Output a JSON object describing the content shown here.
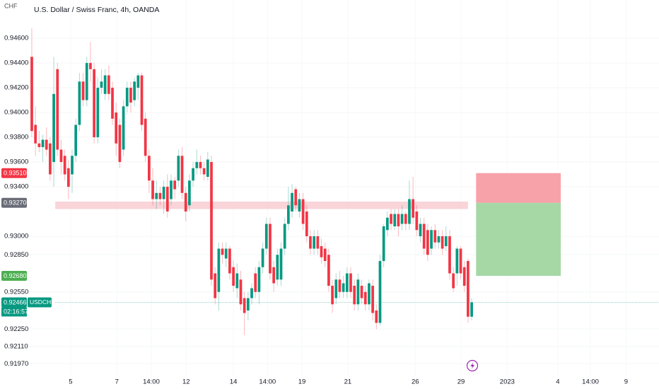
{
  "chart_data": {
    "type": "candlestick",
    "title": "U.S. Dollar / Swiss Franc, 4h, OANDA",
    "y_label": "CHF",
    "up_color": "#089981",
    "down_color": "#f23645",
    "ohlc": [
      [
        0.9445,
        0.9468,
        0.938,
        0.9385
      ],
      [
        0.939,
        0.9405,
        0.9365,
        0.9375
      ],
      [
        0.9375,
        0.9385,
        0.9368,
        0.9372
      ],
      [
        0.9372,
        0.9382,
        0.936,
        0.9378
      ],
      [
        0.9378,
        0.9388,
        0.9365,
        0.937
      ],
      [
        0.9375,
        0.938,
        0.9345,
        0.935
      ],
      [
        0.936,
        0.9445,
        0.934,
        0.9415
      ],
      [
        0.9435,
        0.944,
        0.9365,
        0.937
      ],
      [
        0.937,
        0.9378,
        0.935,
        0.936
      ],
      [
        0.9365,
        0.937,
        0.9345,
        0.935
      ],
      [
        0.9355,
        0.9362,
        0.933,
        0.934
      ],
      [
        0.935,
        0.937,
        0.9335,
        0.9365
      ],
      [
        0.9365,
        0.9395,
        0.936,
        0.939
      ],
      [
        0.939,
        0.9432,
        0.9385,
        0.9425
      ],
      [
        0.9425,
        0.9432,
        0.9405,
        0.941
      ],
      [
        0.941,
        0.9445,
        0.9405,
        0.944
      ],
      [
        0.944,
        0.9457,
        0.9425,
        0.9435
      ],
      [
        0.9435,
        0.944,
        0.9375,
        0.938
      ],
      [
        0.938,
        0.9428,
        0.9375,
        0.942
      ],
      [
        0.942,
        0.9435,
        0.9415,
        0.9425
      ],
      [
        0.9415,
        0.9435,
        0.941,
        0.943
      ],
      [
        0.943,
        0.9438,
        0.941,
        0.9415
      ],
      [
        0.942,
        0.9425,
        0.939,
        0.9395
      ],
      [
        0.94,
        0.9408,
        0.9365,
        0.9375
      ],
      [
        0.939,
        0.9395,
        0.9355,
        0.936
      ],
      [
        0.937,
        0.941,
        0.9365,
        0.9405
      ],
      [
        0.9405,
        0.9425,
        0.94,
        0.942
      ],
      [
        0.942,
        0.9425,
        0.94,
        0.9408
      ],
      [
        0.941,
        0.9428,
        0.9405,
        0.9425
      ],
      [
        0.942,
        0.9432,
        0.941,
        0.943
      ],
      [
        0.943,
        0.9432,
        0.9385,
        0.939
      ],
      [
        0.9395,
        0.94,
        0.936,
        0.9365
      ],
      [
        0.9365,
        0.937,
        0.9335,
        0.9345
      ],
      [
        0.9345,
        0.9355,
        0.9325,
        0.933
      ],
      [
        0.933,
        0.9345,
        0.9322,
        0.9335
      ],
      [
        0.9335,
        0.934,
        0.9325,
        0.933
      ],
      [
        0.933,
        0.9345,
        0.9318,
        0.934
      ],
      [
        0.934,
        0.935,
        0.9315,
        0.932
      ],
      [
        0.933,
        0.935,
        0.9325,
        0.9345
      ],
      [
        0.9345,
        0.9348,
        0.933,
        0.9338
      ],
      [
        0.9345,
        0.937,
        0.934,
        0.9365
      ],
      [
        0.9365,
        0.9372,
        0.933,
        0.9335
      ],
      [
        0.9335,
        0.934,
        0.9312,
        0.932
      ],
      [
        0.9325,
        0.935,
        0.932,
        0.9345
      ],
      [
        0.9345,
        0.936,
        0.934,
        0.9355
      ],
      [
        0.9355,
        0.937,
        0.935,
        0.936
      ],
      [
        0.936,
        0.9365,
        0.935,
        0.9355
      ],
      [
        0.9355,
        0.936,
        0.9345,
        0.935
      ],
      [
        0.9348,
        0.9368,
        0.9345,
        0.9362
      ],
      [
        0.936,
        0.9365,
        0.926,
        0.9265
      ],
      [
        0.927,
        0.9275,
        0.9245,
        0.925
      ],
      [
        0.9255,
        0.9295,
        0.924,
        0.929
      ],
      [
        0.929,
        0.9295,
        0.9278,
        0.9285
      ],
      [
        0.9282,
        0.9295,
        0.9275,
        0.929
      ],
      [
        0.929,
        0.9292,
        0.9265,
        0.927
      ],
      [
        0.9275,
        0.928,
        0.9255,
        0.926
      ],
      [
        0.9258,
        0.9278,
        0.925,
        0.927
      ],
      [
        0.9265,
        0.9272,
        0.924,
        0.9245
      ],
      [
        0.925,
        0.9255,
        0.922,
        0.9238
      ],
      [
        0.924,
        0.9255,
        0.9232,
        0.925
      ],
      [
        0.925,
        0.9262,
        0.9245,
        0.9258
      ],
      [
        0.927,
        0.9275,
        0.925,
        0.9255
      ],
      [
        0.9255,
        0.928,
        0.9245,
        0.9275
      ],
      [
        0.9275,
        0.9295,
        0.927,
        0.929
      ],
      [
        0.929,
        0.9315,
        0.9285,
        0.931
      ],
      [
        0.931,
        0.9315,
        0.9265,
        0.927
      ],
      [
        0.9275,
        0.928,
        0.9255,
        0.9262
      ],
      [
        0.9265,
        0.929,
        0.926,
        0.9285
      ],
      [
        0.9265,
        0.9295,
        0.926,
        0.929
      ],
      [
        0.929,
        0.9315,
        0.9285,
        0.931
      ],
      [
        0.931,
        0.934,
        0.9305,
        0.9325
      ],
      [
        0.932,
        0.9342,
        0.9315,
        0.9335
      ],
      [
        0.9338,
        0.934,
        0.932,
        0.9325
      ],
      [
        0.932,
        0.9335,
        0.9315,
        0.933
      ],
      [
        0.933,
        0.9335,
        0.9305,
        0.931
      ],
      [
        0.932,
        0.9325,
        0.9295,
        0.93
      ],
      [
        0.93,
        0.9305,
        0.9285,
        0.929
      ],
      [
        0.929,
        0.9305,
        0.9285,
        0.93
      ],
      [
        0.93,
        0.9305,
        0.9285,
        0.929
      ],
      [
        0.9292,
        0.9298,
        0.9278,
        0.9283
      ],
      [
        0.929,
        0.9295,
        0.9275,
        0.928
      ],
      [
        0.9285,
        0.929,
        0.9255,
        0.926
      ],
      [
        0.926,
        0.9265,
        0.9238,
        0.9245
      ],
      [
        0.925,
        0.927,
        0.9245,
        0.9265
      ],
      [
        0.9265,
        0.9272,
        0.925,
        0.9255
      ],
      [
        0.9255,
        0.9268,
        0.925,
        0.9262
      ],
      [
        0.9255,
        0.9275,
        0.925,
        0.927
      ],
      [
        0.927,
        0.9275,
        0.925,
        0.9255
      ],
      [
        0.926,
        0.9265,
        0.924,
        0.9245
      ],
      [
        0.9245,
        0.927,
        0.924,
        0.9265
      ],
      [
        0.926,
        0.9265,
        0.9245,
        0.925
      ],
      [
        0.9255,
        0.926,
        0.924,
        0.9245
      ],
      [
        0.9245,
        0.9265,
        0.924,
        0.9262
      ],
      [
        0.926,
        0.9265,
        0.9232,
        0.9238
      ],
      [
        0.924,
        0.9245,
        0.9225,
        0.923
      ],
      [
        0.923,
        0.9285,
        0.9228,
        0.928
      ],
      [
        0.928,
        0.931,
        0.9275,
        0.9308
      ],
      [
        0.9305,
        0.932,
        0.93,
        0.9315
      ],
      [
        0.9318,
        0.9322,
        0.9305,
        0.931
      ],
      [
        0.9308,
        0.9322,
        0.9305,
        0.9318
      ],
      [
        0.9318,
        0.9322,
        0.93,
        0.9308
      ],
      [
        0.931,
        0.9325,
        0.9305,
        0.9318
      ],
      [
        0.9318,
        0.932,
        0.9305,
        0.931
      ],
      [
        0.931,
        0.9345,
        0.9305,
        0.933
      ],
      [
        0.933,
        0.9348,
        0.931,
        0.9315
      ],
      [
        0.932,
        0.9325,
        0.93,
        0.9305
      ],
      [
        0.93,
        0.9315,
        0.9295,
        0.931
      ],
      [
        0.931,
        0.9315,
        0.9285,
        0.929
      ],
      [
        0.9305,
        0.931,
        0.928,
        0.9285
      ],
      [
        0.929,
        0.9308,
        0.9285,
        0.9305
      ],
      [
        0.9305,
        0.931,
        0.929,
        0.9295
      ],
      [
        0.9295,
        0.9305,
        0.929,
        0.93
      ],
      [
        0.93,
        0.9305,
        0.9285,
        0.929
      ],
      [
        0.9292,
        0.9308,
        0.9288,
        0.93
      ],
      [
        0.93,
        0.9305,
        0.9265,
        0.927
      ],
      [
        0.927,
        0.9275,
        0.9255,
        0.9258
      ],
      [
        0.927,
        0.9292,
        0.926,
        0.929
      ],
      [
        0.929,
        0.9292,
        0.9265,
        0.927
      ],
      [
        0.9275,
        0.928,
        0.9255,
        0.926
      ],
      [
        0.928,
        0.9282,
        0.923,
        0.9235
      ],
      [
        0.9235,
        0.925,
        0.9232,
        0.92466
      ]
    ],
    "xlim": [
      -0.96,
      171.1
    ],
    "ylim": [
      0.9188,
      0.94909
    ],
    "yticks": [
      {
        "value": 0.946,
        "label": "0.94600"
      },
      {
        "value": 0.944,
        "label": "0.94400"
      },
      {
        "value": 0.942,
        "label": "0.94200"
      },
      {
        "value": 0.94,
        "label": "0.94000"
      },
      {
        "value": 0.938,
        "label": "0.93800"
      },
      {
        "value": 0.936,
        "label": "0.93600"
      },
      {
        "value": 0.934,
        "label": "0.93400"
      },
      {
        "value": 0.93,
        "label": "0.93000"
      },
      {
        "value": 0.9285,
        "label": "0.92850"
      },
      {
        "value": 0.9255,
        "label": "0.92550"
      },
      {
        "value": 0.9225,
        "label": "0.92250"
      },
      {
        "value": 0.9211,
        "label": "0.92110"
      },
      {
        "value": 0.9197,
        "label": "0.91970"
      }
    ],
    "xticks": [
      {
        "value": 10.6,
        "label": "5"
      },
      {
        "value": 23.2,
        "label": "7"
      },
      {
        "value": 32.6,
        "label": "14:00"
      },
      {
        "value": 42.1,
        "label": "12"
      },
      {
        "value": 55,
        "label": "14"
      },
      {
        "value": 64.3,
        "label": "14:00"
      },
      {
        "value": 73.7,
        "label": "19"
      },
      {
        "value": 86.2,
        "label": "21"
      },
      {
        "value": 104.6,
        "label": "26"
      },
      {
        "value": 117.1,
        "label": "29"
      },
      {
        "value": 129.7,
        "label": "2023"
      },
      {
        "value": 143.5,
        "label": "4"
      },
      {
        "value": 152.4,
        "label": "14:00"
      },
      {
        "value": 162.1,
        "label": "9"
      }
    ],
    "grid": true,
    "price_labels": [
      {
        "value": 0.9351,
        "label": "0.93510",
        "color": "#f23645"
      },
      {
        "value": 0.9327,
        "label": "0.93270",
        "color": "#6a6d78"
      },
      {
        "value": 0.9268,
        "label": "0.92680",
        "color": "#4caf50"
      },
      {
        "value": 0.92466,
        "label": "0.92466",
        "color": "#089981"
      }
    ],
    "symbol": "USDCHF",
    "countdown": "02:16:57",
    "zone": {
      "x": [
        6.4,
        119
      ],
      "y": [
        0.9322,
        0.9328
      ],
      "color": "#f8c9d0"
    },
    "position": {
      "x": [
        121.2,
        144.3
      ],
      "stop_color": "#f7a1a9",
      "target_color": "#a5d8a5"
    }
  }
}
